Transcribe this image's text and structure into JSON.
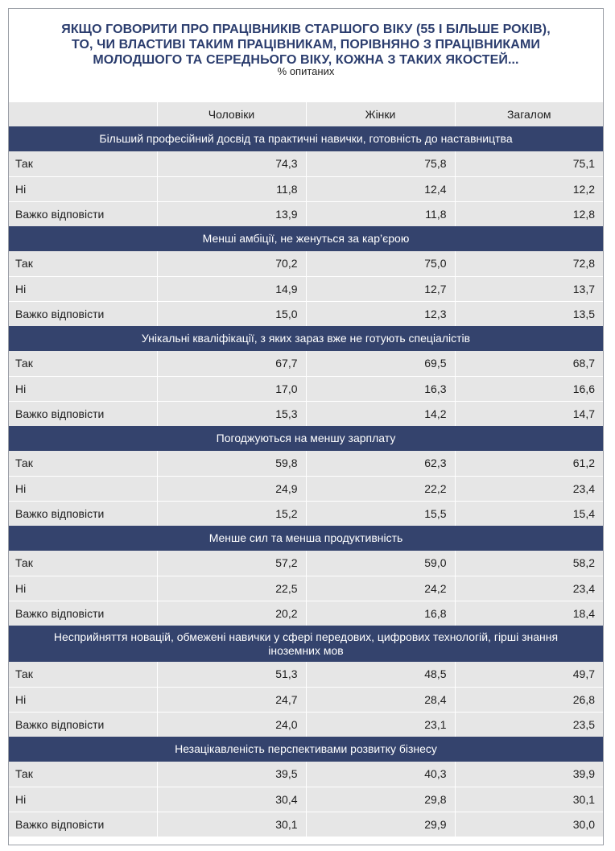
{
  "title_lines": [
    "ЯКЩО ГОВОРИТИ ПРО ПРАЦІВНИКІВ СТАРШОГО ВІКУ (55 І БІЛЬШЕ РОКІВ),",
    "ТО, ЧИ ВЛАСТИВІ ТАКИМ ПРАЦІВНИКАМ, ПОРІВНЯНО З ПРАЦІВНИКАМИ",
    "МОЛОДШОГО ТА СЕРЕДНЬОГО ВІКУ, КОЖНА З ТАКИХ ЯКОСТЕЙ..."
  ],
  "subtitle": "% опитаних",
  "columns": [
    "",
    "Чоловіки",
    "Жінки",
    "Загалом"
  ],
  "sections": [
    {
      "heading": "Більший професійний досвід та практичні навички, готовність до наставництва",
      "rows": [
        {
          "label": "Так",
          "values": [
            "74,3",
            "75,8",
            "75,1"
          ]
        },
        {
          "label": "Ні",
          "values": [
            "11,8",
            "12,4",
            "12,2"
          ]
        },
        {
          "label": "Важко відповісти",
          "values": [
            "13,9",
            "11,8",
            "12,8"
          ]
        }
      ]
    },
    {
      "heading": "Менші амбіції, не женуться за кар’єрою",
      "rows": [
        {
          "label": "Так",
          "values": [
            "70,2",
            "75,0",
            "72,8"
          ]
        },
        {
          "label": "Ні",
          "values": [
            "14,9",
            "12,7",
            "13,7"
          ]
        },
        {
          "label": "Важко відповісти",
          "values": [
            "15,0",
            "12,3",
            "13,5"
          ]
        }
      ]
    },
    {
      "heading": "Унікальні кваліфікації, з яких зараз вже не готують спеціалістів",
      "rows": [
        {
          "label": "Так",
          "values": [
            "67,7",
            "69,5",
            "68,7"
          ]
        },
        {
          "label": "Ні",
          "values": [
            "17,0",
            "16,3",
            "16,6"
          ]
        },
        {
          "label": "Важко відповісти",
          "values": [
            "15,3",
            "14,2",
            "14,7"
          ]
        }
      ]
    },
    {
      "heading": "Погоджуються на меншу зарплату",
      "rows": [
        {
          "label": "Так",
          "values": [
            "59,8",
            "62,3",
            "61,2"
          ]
        },
        {
          "label": "Ні",
          "values": [
            "24,9",
            "22,2",
            "23,4"
          ]
        },
        {
          "label": "Важко відповісти",
          "values": [
            "15,2",
            "15,5",
            "15,4"
          ]
        }
      ]
    },
    {
      "heading": "Менше сил та менша продуктивність",
      "rows": [
        {
          "label": "Так",
          "values": [
            "57,2",
            "59,0",
            "58,2"
          ]
        },
        {
          "label": "Ні",
          "values": [
            "22,5",
            "24,2",
            "23,4"
          ]
        },
        {
          "label": "Важко відповісти",
          "values": [
            "20,2",
            "16,8",
            "18,4"
          ]
        }
      ]
    },
    {
      "heading": "Несприйняття новацій, обмежені навички у сфері передових, цифрових технологій, гірші знання іноземних мов",
      "rows": [
        {
          "label": "Так",
          "values": [
            "51,3",
            "48,5",
            "49,7"
          ]
        },
        {
          "label": "Ні",
          "values": [
            "24,7",
            "28,4",
            "26,8"
          ]
        },
        {
          "label": "Важко відповісти",
          "values": [
            "24,0",
            "23,1",
            "23,5"
          ]
        }
      ]
    },
    {
      "heading": "Незацікавленість перспективами розвитку бізнесу",
      "rows": [
        {
          "label": "Так",
          "values": [
            "39,5",
            "40,3",
            "39,9"
          ]
        },
        {
          "label": "Ні",
          "values": [
            "30,4",
            "29,8",
            "30,1"
          ]
        },
        {
          "label": "Важко відповісти",
          "values": [
            "30,1",
            "29,9",
            "30,0"
          ]
        }
      ]
    }
  ]
}
